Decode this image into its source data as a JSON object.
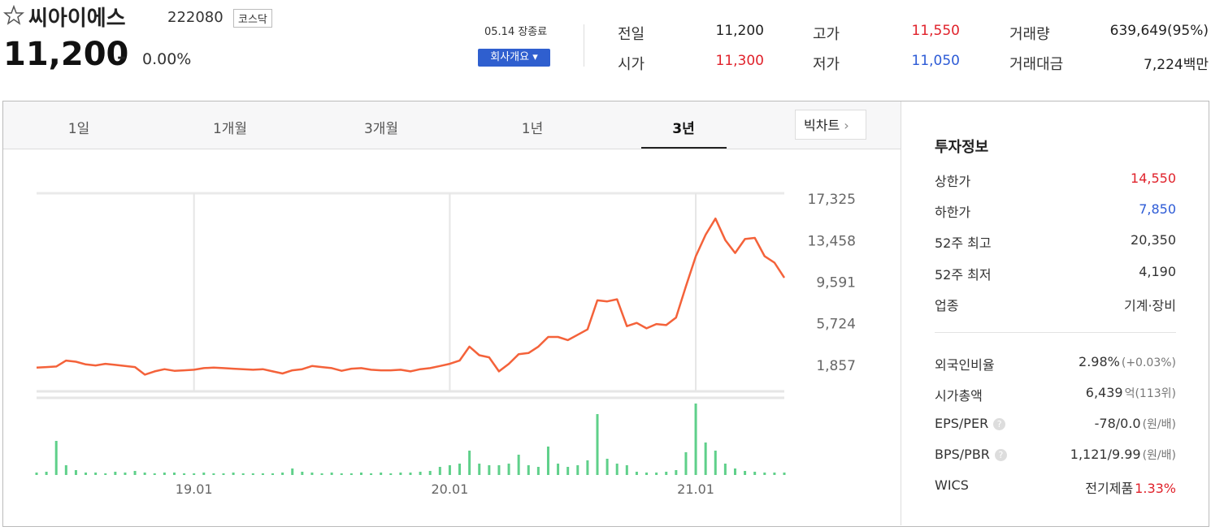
{
  "header": {
    "name": "씨아이에스",
    "code": "222080",
    "market": "코스닥",
    "price": "11,200",
    "change_mark": "–",
    "change_rate": "0.00%",
    "status": "05.14 장종료",
    "company_button": "회사개요"
  },
  "quote": [
    {
      "label": "전일",
      "value": "11,200"
    },
    {
      "label": "시가",
      "value": "11,300",
      "tone": "up"
    },
    {
      "label": "고가",
      "value": "11,550",
      "tone": "up"
    },
    {
      "label": "저가",
      "value": "11,050",
      "tone": "down"
    },
    {
      "label": "거래량",
      "value": "639,649(95%)"
    },
    {
      "label": "거래대금",
      "value": "7,224백만"
    }
  ],
  "tabs": {
    "items": [
      "1일",
      "1개월",
      "3개월",
      "1년",
      "3년"
    ],
    "active": 4,
    "big_chart": "빅차트"
  },
  "chart": {
    "type": "line",
    "color": "#f4623a",
    "categories": [
      null,
      null,
      null,
      null,
      null,
      null,
      null,
      null,
      null,
      null,
      null,
      null,
      null,
      null,
      null,
      null,
      "19.01",
      null,
      null,
      null,
      null,
      null,
      null,
      null,
      null,
      null,
      null,
      null,
      null,
      null,
      null,
      null,
      null,
      null,
      null,
      null,
      null,
      null,
      null,
      null,
      null,
      null,
      "20.01",
      null,
      null,
      null,
      null,
      null,
      null,
      null,
      null,
      null,
      null,
      null,
      null,
      null,
      null,
      null,
      null,
      null,
      null,
      null,
      null,
      null,
      null,
      null,
      null,
      "21.01",
      null,
      null,
      null,
      null,
      null,
      null,
      null,
      null,
      null
    ],
    "values": [
      1650,
      1700,
      1750,
      2300,
      2200,
      1950,
      1850,
      2000,
      1900,
      1800,
      1700,
      1000,
      1300,
      1500,
      1350,
      1400,
      1450,
      1600,
      1650,
      1600,
      1550,
      1500,
      1450,
      1500,
      1300,
      1100,
      1400,
      1500,
      1800,
      1700,
      1600,
      1350,
      1550,
      1600,
      1450,
      1400,
      1400,
      1450,
      1300,
      1500,
      1600,
      1800,
      2000,
      2300,
      3600,
      2800,
      2600,
      1300,
      2000,
      2900,
      3000,
      3600,
      4500,
      4500,
      4200,
      4700,
      5200,
      7900,
      7800,
      8000,
      5500,
      5800,
      5300,
      5700,
      5600,
      6300,
      9200,
      12000,
      14000,
      15500,
      13500,
      12300,
      13600,
      13700,
      12000,
      11400,
      10000
    ],
    "ylim": [
      -558,
      17854
    ],
    "yticks": [
      {
        "value": 17325,
        "label": "17,325"
      },
      {
        "value": 13458,
        "label": "13,458"
      },
      {
        "value": 9591,
        "label": "9,591"
      },
      {
        "value": 5724,
        "label": "5,724"
      },
      {
        "value": 1857,
        "label": "1,857"
      }
    ],
    "volume": {
      "color": "#5fd08a",
      "ylim": [
        0,
        100
      ],
      "values": [
        3,
        4,
        42,
        12,
        6,
        3,
        3,
        2,
        4,
        3,
        5,
        3,
        2,
        3,
        3,
        2,
        2,
        3,
        2,
        2,
        3,
        2,
        2,
        2,
        2,
        3,
        8,
        4,
        3,
        2,
        3,
        2,
        2,
        3,
        2,
        3,
        2,
        3,
        3,
        4,
        5,
        10,
        12,
        14,
        30,
        14,
        12,
        12,
        14,
        25,
        12,
        10,
        35,
        14,
        10,
        12,
        18,
        75,
        20,
        14,
        12,
        4,
        3,
        3,
        4,
        6,
        28,
        88,
        40,
        30,
        14,
        8,
        5,
        4,
        3,
        3,
        3
      ]
    }
  },
  "invest": {
    "title": "투자정보",
    "rows": [
      {
        "label": "상한가",
        "value": "14,550",
        "tone": "up"
      },
      {
        "label": "하한가",
        "value": "7,850",
        "tone": "down"
      },
      {
        "label": "52주 최고",
        "value": "20,350"
      },
      {
        "label": "52주 최저",
        "value": "4,190"
      },
      {
        "label": "업종",
        "value": "기계·장비"
      },
      {
        "label": "외국인비율",
        "value": "2.98%",
        "note": "(+0.03%)"
      },
      {
        "label": "시가총액",
        "value": "6,439",
        "note": "억(113위)"
      },
      {
        "label": "EPS/PER",
        "help": "?",
        "value": "-78/0.0",
        "note": "(원/배)"
      },
      {
        "label": "BPS/PBR",
        "help": "?",
        "value": "1,121/9.99",
        "note": "(원/배)"
      },
      {
        "label": "WICS",
        "value": "전기제품",
        "note": "1.33%",
        "note_tone": "up"
      }
    ]
  }
}
